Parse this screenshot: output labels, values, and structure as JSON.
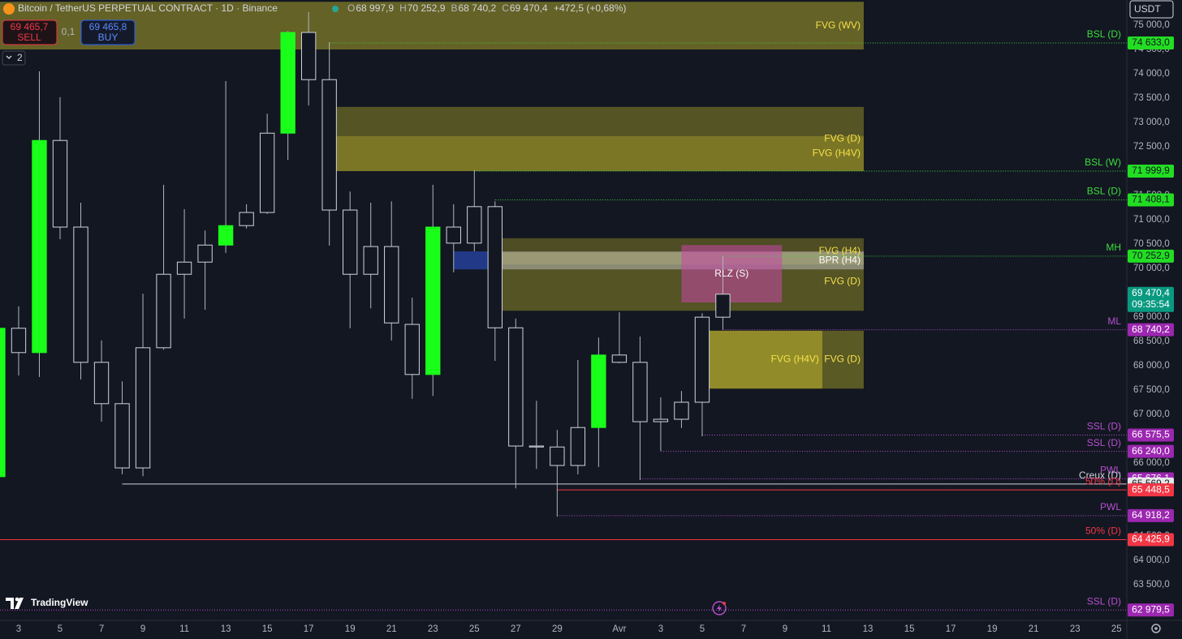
{
  "header": {
    "title": "Bitcoin / TetherUS PERPETUAL CONTRACT · 1D · Binance",
    "ohlc": [
      {
        "key": "O",
        "value": "68 997,9"
      },
      {
        "key": "H",
        "value": "70 252,9"
      },
      {
        "key": "B",
        "value": "68 740,2"
      },
      {
        "key": "C",
        "value": "69 470,4"
      }
    ],
    "change": "+472,5 (+0,68%)"
  },
  "trade": {
    "sell_price": "69 465,7",
    "sell": "SELL",
    "quantity": "0,1",
    "buy_price": "69 465,8",
    "buy": "BUY"
  },
  "indicator_count": "2",
  "currency": "USDT",
  "brand": "TradingView",
  "chart_data": {
    "type": "candlestick",
    "x": [
      0,
      1,
      2,
      3,
      4,
      5,
      6,
      7,
      8,
      9,
      10,
      11,
      12,
      13,
      14,
      15,
      16,
      17,
      18,
      19,
      20,
      21,
      22,
      23,
      24,
      25,
      26,
      27,
      28,
      29,
      30,
      31,
      32,
      33,
      34,
      35
    ],
    "open": [
      65720,
      68770,
      68270,
      72630,
      70850,
      68070,
      67220,
      65900,
      68370,
      69880,
      70130,
      70480,
      70880,
      71150,
      72780,
      74850,
      73880,
      71200,
      69880,
      70450,
      68850,
      67820,
      70850,
      70520,
      71270,
      68780,
      66350,
      66330,
      65950,
      66730,
      68220,
      68070,
      66850,
      66900,
      67250,
      68997.9
    ],
    "high": [
      68800,
      69220,
      74050,
      73520,
      71350,
      68520,
      67680,
      69480,
      71720,
      71220,
      70780,
      73850,
      71320,
      73180,
      74880,
      75270,
      74650,
      71580,
      71350,
      71380,
      69400,
      71720,
      71320,
      72020,
      71380,
      68970,
      67280,
      66680,
      68120,
      68580,
      69100,
      68600,
      67350,
      67480,
      69080,
      70252.9
    ],
    "low": [
      65700,
      67800,
      67770,
      70600,
      67720,
      66850,
      65770,
      65730,
      68330,
      68970,
      69150,
      70320,
      70820,
      71120,
      72230,
      73350,
      70470,
      68770,
      69180,
      68520,
      67320,
      67380,
      69920,
      70350,
      68100,
      65480,
      65880,
      64900,
      65770,
      65920,
      68050,
      65650,
      66250,
      66720,
      66550,
      68740.2
    ],
    "close": [
      68770,
      68270,
      72630,
      70850,
      68070,
      67220,
      65900,
      68370,
      69880,
      70130,
      70480,
      70880,
      71150,
      72780,
      74850,
      73880,
      71200,
      69880,
      70450,
      68880,
      67820,
      70850,
      70520,
      71270,
      68780,
      66350,
      66330,
      65950,
      66730,
      68220,
      68070,
      66850,
      66900,
      67250,
      68997.9,
      69470.4
    ],
    "body_colors": [
      "#1aff1a",
      "#131722",
      "#1aff1a",
      "#131722",
      "#131722",
      "#131722",
      "#131722",
      "#131722",
      "#131722",
      "#131722",
      "#131722",
      "#1aff1a",
      "#131722",
      "#131722",
      "#1aff1a",
      "#131722",
      "#131722",
      "#131722",
      "#131722",
      "#131722",
      "#131722",
      "#1aff1a",
      "#131722",
      "#131722",
      "#131722",
      "#131722",
      "#131722",
      "#131722",
      "#131722",
      "#1aff1a",
      "#131722",
      "#131722",
      "#131722",
      "#131722",
      "#131722",
      "#131722"
    ],
    "border_colors": [
      "#1aff1a",
      "#d1d4dc",
      "#1aff1a",
      "#d1d4dc",
      "#d1d4dc",
      "#d1d4dc",
      "#d1d4dc",
      "#d1d4dc",
      "#d1d4dc",
      "#d1d4dc",
      "#d1d4dc",
      "#1aff1a",
      "#d1d4dc",
      "#d1d4dc",
      "#1aff1a",
      "#d1d4dc",
      "#d1d4dc",
      "#d1d4dc",
      "#d1d4dc",
      "#d1d4dc",
      "#d1d4dc",
      "#1aff1a",
      "#d1d4dc",
      "#d1d4dc",
      "#d1d4dc",
      "#d1d4dc",
      "#d1d4dc",
      "#d1d4dc",
      "#d1d4dc",
      "#1aff1a",
      "#d1d4dc",
      "#d1d4dc",
      "#d1d4dc",
      "#d1d4dc",
      "#d1d4dc",
      "#d1d4dc"
    ],
    "wick_color": "#b2b5be",
    "xlim": [
      0.1,
      54.5
    ],
    "xticks": [
      {
        "value": 1,
        "label": "3"
      },
      {
        "value": 3,
        "label": "5"
      },
      {
        "value": 5,
        "label": "7"
      },
      {
        "value": 7,
        "label": "9"
      },
      {
        "value": 9,
        "label": "11"
      },
      {
        "value": 11,
        "label": "13"
      },
      {
        "value": 13,
        "label": "15"
      },
      {
        "value": 15,
        "label": "17"
      },
      {
        "value": 17,
        "label": "19"
      },
      {
        "value": 19,
        "label": "21"
      },
      {
        "value": 21,
        "label": "23"
      },
      {
        "value": 23,
        "label": "25"
      },
      {
        "value": 25,
        "label": "27"
      },
      {
        "value": 27,
        "label": "29"
      },
      {
        "value": 30,
        "label": "Avr"
      },
      {
        "value": 32,
        "label": "3"
      },
      {
        "value": 34,
        "label": "5"
      },
      {
        "value": 36,
        "label": "7"
      },
      {
        "value": 38,
        "label": "9"
      },
      {
        "value": 40,
        "label": "11"
      },
      {
        "value": 42,
        "label": "13"
      },
      {
        "value": 44,
        "label": "15"
      },
      {
        "value": 46,
        "label": "17"
      },
      {
        "value": 48,
        "label": "19"
      },
      {
        "value": 50,
        "label": "21"
      },
      {
        "value": 52,
        "label": "23"
      },
      {
        "value": 54,
        "label": "25"
      }
    ],
    "ylim": [
      62767,
      75517
    ],
    "yticks": [
      {
        "value": 75000,
        "label": "75 000,0"
      },
      {
        "value": 74500,
        "label": "74 500,0"
      },
      {
        "value": 74000,
        "label": "74 000,0"
      },
      {
        "value": 73500,
        "label": "73 500,0"
      },
      {
        "value": 73000,
        "label": "73 000,0"
      },
      {
        "value": 72500,
        "label": "72 500,0"
      },
      {
        "value": 71500,
        "label": "71 500,0"
      },
      {
        "value": 71000,
        "label": "71 000,0"
      },
      {
        "value": 70500,
        "label": "70 500,0"
      },
      {
        "value": 70000,
        "label": "70 000,0"
      },
      {
        "value": 69000,
        "label": "69 000,0"
      },
      {
        "value": 68500,
        "label": "68 500,0"
      },
      {
        "value": 68000,
        "label": "68 000,0"
      },
      {
        "value": 67500,
        "label": "67 500,0"
      },
      {
        "value": 67000,
        "label": "67 000,0"
      },
      {
        "value": 66000,
        "label": "66 000,0"
      },
      {
        "value": 64500,
        "label": "64 500,0"
      },
      {
        "value": 64000,
        "label": "64 000,0"
      },
      {
        "value": 63500,
        "label": "63 500,0"
      }
    ],
    "grid": false,
    "zones": [
      {
        "label": "FVG (WV)",
        "x0": 0.1,
        "x1": 41.8,
        "top": 75480,
        "bottom": 74500,
        "color": "rgba(150,145,40,0.62)",
        "label_color": "#f5e04a",
        "label_align": "end"
      },
      {
        "label": "FVG (D)",
        "x0": 16,
        "x1": 41.8,
        "top": 73320,
        "bottom": 72000,
        "color": "rgba(150,145,40,0.5)",
        "label_color": "#f5e04a",
        "label_align": "end"
      },
      {
        "label": "FVG (H4V)",
        "x0": 16,
        "x1": 41.8,
        "top": 72720,
        "bottom": 72000,
        "color": "rgba(170,160,40,0.45)",
        "label_color": "#f5e04a",
        "label_align": "end"
      },
      {
        "label": "FVG (H4)",
        "x0": 24,
        "x1": 41.8,
        "top": 70620,
        "bottom": 70080,
        "color": "rgba(150,145,40,0.45)",
        "label_color": "#f5e04a",
        "label_align": "end"
      },
      {
        "label": "FVG (D)",
        "x0": 24,
        "x1": 41.8,
        "top": 70330,
        "bottom": 69130,
        "color": "rgba(150,145,40,0.5)",
        "label_color": "#f5e04a",
        "label_align": "end"
      },
      {
        "x0": 22,
        "x1": 24,
        "top": 70350,
        "bottom": 69980,
        "color": "rgba(40,70,170,0.75)"
      },
      {
        "label": "BPR (H4)",
        "x0": 24,
        "x1": 41.8,
        "top": 70350,
        "bottom": 69980,
        "color": "rgba(205,205,215,0.45)",
        "label_color": "#ffffff",
        "label_align": "end"
      },
      {
        "label": "RLZ (S)",
        "x0": 33,
        "x1": 37.85,
        "top": 70480,
        "bottom": 69300,
        "color": "rgba(200,70,170,0.55)",
        "label_color": "#ffffff",
        "label_align": "middle"
      },
      {
        "label": "FVG (D)",
        "x0": 33.9,
        "x1": 41.8,
        "top": 68720,
        "bottom": 67530,
        "color": "rgba(150,145,40,0.55)",
        "label_color": "#f5e04a",
        "label_align": "end"
      },
      {
        "label": "FVG (H4V)",
        "x0": 33.9,
        "x1": 39.8,
        "top": 68720,
        "bottom": 67530,
        "color": "rgba(200,190,45,0.5)",
        "label_color": "#f5e04a",
        "label_align": "end"
      }
    ],
    "levels": [
      {
        "label": "BSL (D)",
        "price": 74633.0,
        "price_label": "74 633,0",
        "x0": 16,
        "color": "#3ddc3d",
        "style": "dotted",
        "tag_color": "#22dd22",
        "tag_text_color": "#131722"
      },
      {
        "label": "BSL (W)",
        "price": 71999.9,
        "price_label": "71 999,9",
        "x0": 23,
        "color": "#3ddc3d",
        "style": "dotted",
        "tag_color": "#22dd22",
        "tag_text_color": "#131722"
      },
      {
        "label": "BSL (D)",
        "price": 71408.1,
        "price_label": "71 408,1",
        "x0": 24,
        "color": "#3ddc3d",
        "style": "dotted",
        "tag_color": "#22dd22",
        "tag_text_color": "#131722"
      },
      {
        "label": "MH",
        "price": 70252.9,
        "price_label": "70 252,9",
        "x0": 35,
        "color": "#3ddc3d",
        "style": "dotted",
        "tag_color": "#22dd22",
        "tag_text_color": "#131722"
      },
      {
        "label": "ML",
        "price": 68740.2,
        "price_label": "68 740,2",
        "x0": 35,
        "color": "#b84fcf",
        "style": "dotted",
        "tag_color": "#9c27b0",
        "tag_text_color": "#ffffff"
      },
      {
        "label": "SSL (D)",
        "price": 66575.5,
        "price_label": "66 575,5",
        "x0": 34,
        "color": "#b84fcf",
        "style": "dotted",
        "tag_color": "#9c27b0",
        "tag_text_color": "#ffffff"
      },
      {
        "label": "SSL (D)",
        "price": 66240.0,
        "price_label": "66 240,0",
        "x0": 32,
        "color": "#b84fcf",
        "style": "dotted",
        "tag_color": "#9c27b0",
        "tag_text_color": "#ffffff"
      },
      {
        "label": "PWL",
        "price": 65676.1,
        "price_label": "65 676,1",
        "x0": 31,
        "color": "#b84fcf",
        "style": "dotted",
        "tag_color": "#9c27b0",
        "tag_text_color": "#ffffff"
      },
      {
        "label": "Creux (D)",
        "price": 65569.2,
        "price_label": "65 569,2",
        "x0": 6,
        "color": "#d1d4dc",
        "style": "solid",
        "tag_color": "#e6e6e6",
        "tag_text_color": "#131722"
      },
      {
        "label": "50% (D)",
        "price": 65448.5,
        "price_label": "65 448,5",
        "x0": 27,
        "color": "#f23645",
        "style": "solid",
        "tag_color": "#f23645",
        "tag_text_color": "#ffffff"
      },
      {
        "label": "PWL",
        "price": 64918.2,
        "price_label": "64 918,2",
        "x0": 27,
        "color": "#b84fcf",
        "style": "dotted",
        "tag_color": "#9c27b0",
        "tag_text_color": "#ffffff"
      },
      {
        "label": "50% (D)",
        "price": 64425.9,
        "price_label": "64 425,9",
        "x0": 0.1,
        "color": "#f23645",
        "style": "solid",
        "tag_color": "#f23645",
        "tag_text_color": "#ffffff"
      },
      {
        "label": "SSL (D)",
        "price": 62979.5,
        "price_label": "62 979,5",
        "x0": 0.1,
        "color": "#b84fcf",
        "style": "dotted",
        "tag_color": "#9c27b0",
        "tag_text_color": "#ffffff"
      }
    ],
    "last_price": {
      "label": "69 470,4",
      "countdown": "09:35:54",
      "color": "#089981"
    }
  }
}
